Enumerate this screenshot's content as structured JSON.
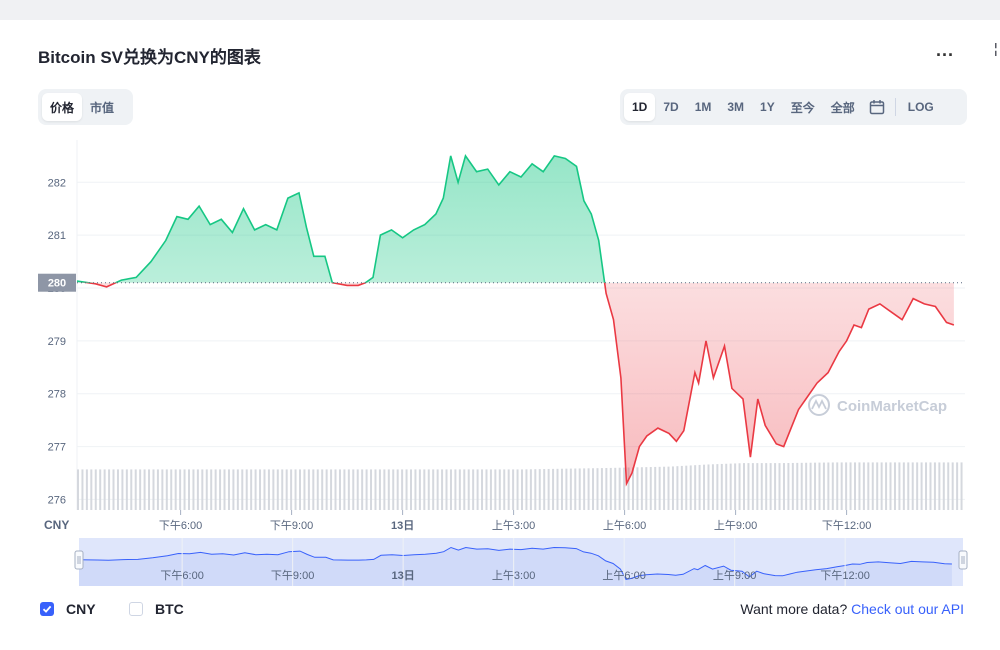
{
  "title": "Bitcoin SV兑换为CNY的图表",
  "more_label": "...",
  "edge_dot": "¦",
  "type_toggle": [
    {
      "label": "价格",
      "active": true
    },
    {
      "label": "市值",
      "active": false
    }
  ],
  "range_buttons": [
    {
      "label": "1D",
      "active": true
    },
    {
      "label": "7D",
      "active": false
    },
    {
      "label": "1M",
      "active": false
    },
    {
      "label": "3M",
      "active": false
    },
    {
      "label": "1Y",
      "active": false
    },
    {
      "label": "至今",
      "active": false
    },
    {
      "label": "全部",
      "active": false
    }
  ],
  "log_label": "LOG",
  "currency_label": "CNY",
  "watermark": "CoinMarketCap",
  "legend": [
    {
      "label": "CNY",
      "checked": true
    },
    {
      "label": "BTC",
      "checked": false
    }
  ],
  "more_data": {
    "text": "Want more data?",
    "link": "Check out our API"
  },
  "colors": {
    "up": "#16c784",
    "down": "#ea3943",
    "accent": "#3861fb",
    "volume": "#d5d8de",
    "navigator": "#dfe6fb",
    "baseline_tag": "#8e96a6"
  },
  "chart_data": {
    "type": "area",
    "ylim": [
      275.8,
      282.8
    ],
    "y_ticks": [
      282,
      281,
      280,
      279,
      278,
      277,
      276
    ],
    "baseline_value": 280.1,
    "baseline_label": "280",
    "x_range": [
      0,
      24
    ],
    "x_ticks": [
      {
        "x": 2.8,
        "label": "下午6:00",
        "bold": false
      },
      {
        "x": 5.8,
        "label": "下午9:00",
        "bold": false
      },
      {
        "x": 8.8,
        "label": "13日",
        "bold": true
      },
      {
        "x": 11.8,
        "label": "上午3:00",
        "bold": false
      },
      {
        "x": 14.8,
        "label": "上午6:00",
        "bold": false
      },
      {
        "x": 17.8,
        "label": "上午9:00",
        "bold": false
      },
      {
        "x": 20.8,
        "label": "下午12:00",
        "bold": false
      }
    ],
    "price": [
      [
        0.0,
        280.13
      ],
      [
        0.5,
        280.08
      ],
      [
        0.8,
        280.02
      ],
      [
        1.2,
        280.15
      ],
      [
        1.6,
        280.2
      ],
      [
        2.0,
        280.5
      ],
      [
        2.4,
        280.9
      ],
      [
        2.7,
        281.35
      ],
      [
        3.0,
        281.3
      ],
      [
        3.3,
        281.55
      ],
      [
        3.6,
        281.2
      ],
      [
        3.9,
        281.3
      ],
      [
        4.2,
        281.05
      ],
      [
        4.5,
        281.5
      ],
      [
        4.8,
        281.1
      ],
      [
        5.1,
        281.2
      ],
      [
        5.4,
        281.1
      ],
      [
        5.7,
        281.7
      ],
      [
        6.0,
        281.8
      ],
      [
        6.2,
        281.15
      ],
      [
        6.4,
        280.6
      ],
      [
        6.7,
        280.6
      ],
      [
        6.9,
        280.1
      ],
      [
        7.3,
        280.05
      ],
      [
        7.6,
        280.05
      ],
      [
        7.8,
        280.1
      ],
      [
        8.0,
        280.2
      ],
      [
        8.2,
        281.0
      ],
      [
        8.5,
        281.1
      ],
      [
        8.8,
        280.95
      ],
      [
        9.1,
        281.1
      ],
      [
        9.4,
        281.2
      ],
      [
        9.7,
        281.4
      ],
      [
        9.9,
        281.7
      ],
      [
        10.1,
        282.5
      ],
      [
        10.3,
        282.0
      ],
      [
        10.5,
        282.5
      ],
      [
        10.8,
        282.2
      ],
      [
        11.1,
        282.25
      ],
      [
        11.4,
        281.95
      ],
      [
        11.7,
        282.2
      ],
      [
        12.0,
        282.1
      ],
      [
        12.3,
        282.35
      ],
      [
        12.6,
        282.2
      ],
      [
        12.9,
        282.5
      ],
      [
        13.2,
        282.45
      ],
      [
        13.5,
        282.3
      ],
      [
        13.7,
        281.65
      ],
      [
        13.9,
        281.4
      ],
      [
        14.1,
        280.9
      ],
      [
        14.3,
        279.9
      ],
      [
        14.5,
        279.4
      ],
      [
        14.7,
        278.3
      ],
      [
        14.85,
        276.3
      ],
      [
        15.0,
        276.5
      ],
      [
        15.2,
        277.0
      ],
      [
        15.4,
        277.2
      ],
      [
        15.7,
        277.35
      ],
      [
        16.0,
        277.25
      ],
      [
        16.2,
        277.1
      ],
      [
        16.4,
        277.3
      ],
      [
        16.7,
        278.4
      ],
      [
        16.8,
        278.2
      ],
      [
        17.0,
        279.0
      ],
      [
        17.2,
        278.3
      ],
      [
        17.5,
        278.9
      ],
      [
        17.7,
        278.1
      ],
      [
        18.0,
        277.9
      ],
      [
        18.2,
        276.8
      ],
      [
        18.4,
        277.9
      ],
      [
        18.6,
        277.4
      ],
      [
        18.9,
        277.05
      ],
      [
        19.1,
        277.0
      ],
      [
        19.3,
        277.35
      ],
      [
        19.5,
        277.7
      ],
      [
        19.7,
        277.9
      ],
      [
        20.0,
        278.2
      ],
      [
        20.3,
        278.4
      ],
      [
        20.6,
        278.8
      ],
      [
        20.8,
        279.0
      ],
      [
        21.0,
        279.3
      ],
      [
        21.2,
        279.25
      ],
      [
        21.4,
        279.6
      ],
      [
        21.7,
        279.7
      ],
      [
        22.0,
        279.55
      ],
      [
        22.3,
        279.4
      ],
      [
        22.6,
        279.8
      ],
      [
        22.9,
        279.7
      ],
      [
        23.2,
        279.65
      ],
      [
        23.5,
        279.35
      ],
      [
        23.7,
        279.3
      ]
    ],
    "volume_label": "",
    "volume": [
      [
        0,
        0.58
      ],
      [
        3,
        0.58
      ],
      [
        6,
        0.58
      ],
      [
        9,
        0.58
      ],
      [
        12,
        0.58
      ],
      [
        14.3,
        0.6
      ],
      [
        16,
        0.62
      ],
      [
        17,
        0.65
      ],
      [
        18,
        0.67
      ],
      [
        19,
        0.67
      ],
      [
        20.5,
        0.68
      ],
      [
        22,
        0.68
      ],
      [
        24,
        0.68
      ]
    ]
  }
}
